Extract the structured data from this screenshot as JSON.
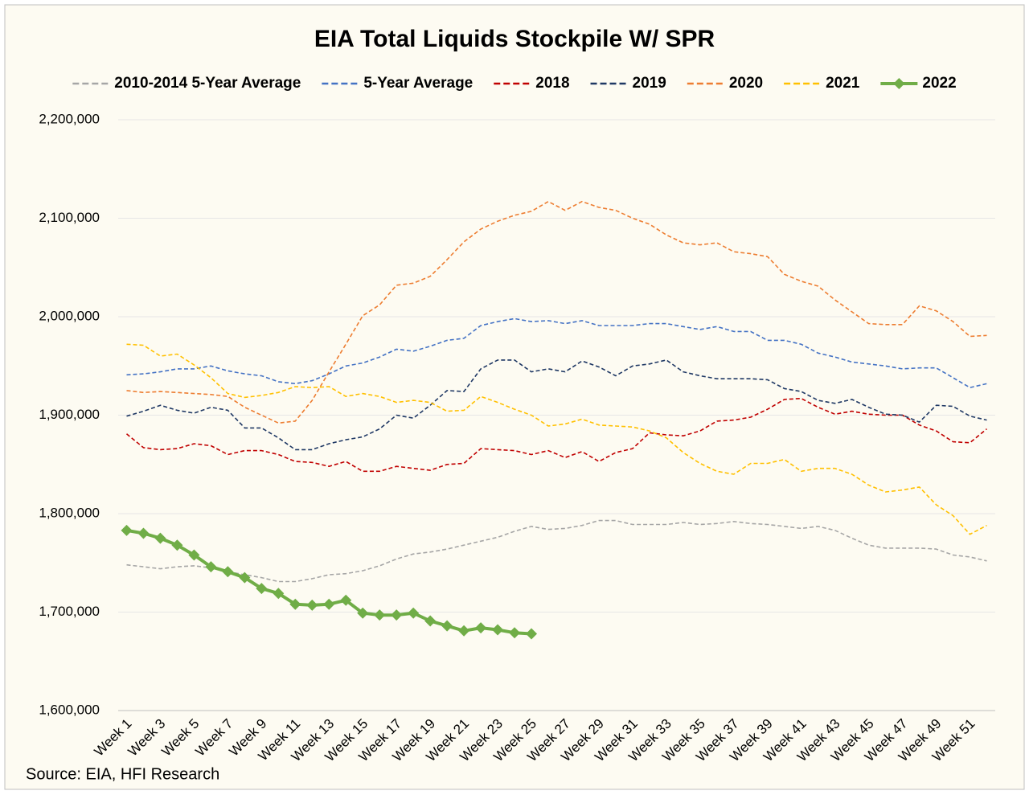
{
  "chart_data": {
    "type": "line",
    "title": "EIA Total Liquids Stockpile W/ SPR",
    "source": "Source: EIA, HFI Research",
    "categories": [
      "Week 1",
      null,
      "Week 3",
      null,
      "Week 5",
      null,
      "Week 7",
      null,
      "Week 9",
      null,
      "Week 11",
      null,
      "Week 13",
      null,
      "Week 15",
      null,
      "Week 17",
      null,
      "Week 19",
      null,
      "Week 21",
      null,
      "Week 23",
      null,
      "Week 25",
      null,
      "Week 27",
      null,
      "Week 29",
      null,
      "Week 31",
      null,
      "Week 33",
      null,
      "Week 35",
      null,
      "Week 37",
      null,
      "Week 39",
      null,
      "Week 41",
      null,
      "Week 43",
      null,
      "Week 45",
      null,
      "Week 47",
      null,
      "Week 49",
      null,
      "Week 51",
      null
    ],
    "ylim": [
      1600000,
      2200000
    ],
    "yticks": [
      {
        "value": 1600000,
        "label": "1,600,000"
      },
      {
        "value": 1700000,
        "label": "1,700,000"
      },
      {
        "value": 1800000,
        "label": "1,800,000"
      },
      {
        "value": 1900000,
        "label": "1,900,000"
      },
      {
        "value": 2000000,
        "label": "2,000,000"
      },
      {
        "value": 2100000,
        "label": "2,100,000"
      },
      {
        "value": 2200000,
        "label": "2,200,000"
      }
    ],
    "grid": true,
    "legend": "top",
    "series": [
      {
        "name": "2010-2014 5-Year Average",
        "color": "#a6a6a6",
        "line_style": "dashed",
        "values": [
          1748000,
          1746000,
          1744000,
          1746000,
          1747000,
          1745000,
          1741000,
          1738000,
          1735000,
          1731000,
          1731000,
          1734000,
          1738000,
          1739000,
          1742000,
          1747000,
          1754000,
          1759000,
          1761000,
          1764000,
          1768000,
          1772000,
          1776000,
          1782000,
          1787000,
          1784000,
          1785000,
          1788000,
          1793000,
          1793000,
          1789000,
          1789000,
          1789000,
          1791000,
          1789000,
          1790000,
          1792000,
          1790000,
          1789000,
          1787000,
          1785000,
          1787000,
          1783000,
          1775000,
          1768000,
          1765000,
          1765000,
          1765000,
          1764000,
          1758000,
          1756000,
          1752000
        ]
      },
      {
        "name": "5-Year Average",
        "color": "#4472c4",
        "line_style": "dashed",
        "values": [
          1941000,
          1942000,
          1944000,
          1947000,
          1947000,
          1950000,
          1945000,
          1942000,
          1940000,
          1934000,
          1932000,
          1935000,
          1942000,
          1950000,
          1953000,
          1959000,
          1967000,
          1965000,
          1970000,
          1976000,
          1978000,
          1991000,
          1995000,
          1998000,
          1995000,
          1996000,
          1993000,
          1996000,
          1991000,
          1991000,
          1991000,
          1993000,
          1993000,
          1990000,
          1987000,
          1990000,
          1985000,
          1985000,
          1976000,
          1976000,
          1972000,
          1963000,
          1959000,
          1954000,
          1952000,
          1950000,
          1947000,
          1948000,
          1948000,
          1938000,
          1928000,
          1932000
        ]
      },
      {
        "name": "2018",
        "color": "#c00000",
        "line_style": "dashed",
        "values": [
          1881000,
          1867000,
          1865000,
          1866000,
          1871000,
          1869000,
          1860000,
          1864000,
          1864000,
          1860000,
          1853000,
          1852000,
          1848000,
          1853000,
          1843000,
          1843000,
          1848000,
          1846000,
          1844000,
          1850000,
          1851000,
          1866000,
          1865000,
          1864000,
          1860000,
          1864000,
          1857000,
          1863000,
          1853000,
          1862000,
          1866000,
          1882000,
          1880000,
          1879000,
          1884000,
          1894000,
          1895000,
          1898000,
          1906000,
          1916000,
          1917000,
          1908000,
          1901000,
          1904000,
          1901000,
          1900000,
          1900000,
          1890000,
          1884000,
          1873000,
          1872000,
          1886000
        ]
      },
      {
        "name": "2019",
        "color": "#1f3864",
        "line_style": "dashed",
        "values": [
          1899000,
          1904000,
          1910000,
          1905000,
          1902000,
          1908000,
          1905000,
          1887000,
          1887000,
          1877000,
          1865000,
          1865000,
          1871000,
          1875000,
          1878000,
          1886000,
          1900000,
          1897000,
          1910000,
          1925000,
          1924000,
          1947000,
          1956000,
          1956000,
          1944000,
          1947000,
          1944000,
          1955000,
          1949000,
          1940000,
          1950000,
          1952000,
          1956000,
          1944000,
          1940000,
          1937000,
          1937000,
          1937000,
          1936000,
          1927000,
          1924000,
          1915000,
          1912000,
          1916000,
          1908000,
          1901000,
          1900000,
          1893000,
          1910000,
          1909000,
          1899000,
          1895000
        ]
      },
      {
        "name": "2020",
        "color": "#ed7d31",
        "line_style": "dashed",
        "values": [
          1925000,
          1923000,
          1924000,
          1923000,
          1922000,
          1921000,
          1919000,
          1908000,
          1900000,
          1892000,
          1894000,
          1915000,
          1944000,
          1972000,
          2001000,
          2012000,
          2032000,
          2034000,
          2041000,
          2058000,
          2076000,
          2089000,
          2097000,
          2103000,
          2107000,
          2117000,
          2108000,
          2117000,
          2111000,
          2108000,
          2100000,
          2094000,
          2083000,
          2075000,
          2073000,
          2075000,
          2066000,
          2064000,
          2061000,
          2043000,
          2036000,
          2031000,
          2017000,
          2005000,
          1993000,
          1992000,
          1992000,
          2011000,
          2006000,
          1995000,
          1980000,
          1981000
        ]
      },
      {
        "name": "2021",
        "color": "#ffc000",
        "line_style": "dashed",
        "values": [
          1972000,
          1971000,
          1960000,
          1962000,
          1951000,
          1938000,
          1922000,
          1918000,
          1920000,
          1923000,
          1929000,
          1928000,
          1929000,
          1919000,
          1922000,
          1919000,
          1913000,
          1915000,
          1913000,
          1904000,
          1905000,
          1919000,
          1913000,
          1906000,
          1900000,
          1889000,
          1891000,
          1896000,
          1890000,
          1889000,
          1888000,
          1884000,
          1877000,
          1862000,
          1851000,
          1843000,
          1840000,
          1851000,
          1851000,
          1855000,
          1843000,
          1846000,
          1846000,
          1840000,
          1829000,
          1822000,
          1824000,
          1827000,
          1809000,
          1798000,
          1779000,
          1788000
        ]
      },
      {
        "name": "2022",
        "color": "#70ad47",
        "line_style": "solid",
        "marker": "diamond",
        "values": [
          1783000,
          1780000,
          1775000,
          1768000,
          1758000,
          1746000,
          1741000,
          1735000,
          1724000,
          1719000,
          1708000,
          1707000,
          1708000,
          1712000,
          1699000,
          1697000,
          1697000,
          1699000,
          1691000,
          1686000,
          1681000,
          1684000,
          1682000,
          1679000,
          1678000,
          null,
          null,
          null,
          null,
          null,
          null,
          null,
          null,
          null,
          null,
          null,
          null,
          null,
          null,
          null,
          null,
          null,
          null,
          null,
          null,
          null,
          null,
          null,
          null,
          null,
          null,
          null
        ]
      }
    ]
  }
}
